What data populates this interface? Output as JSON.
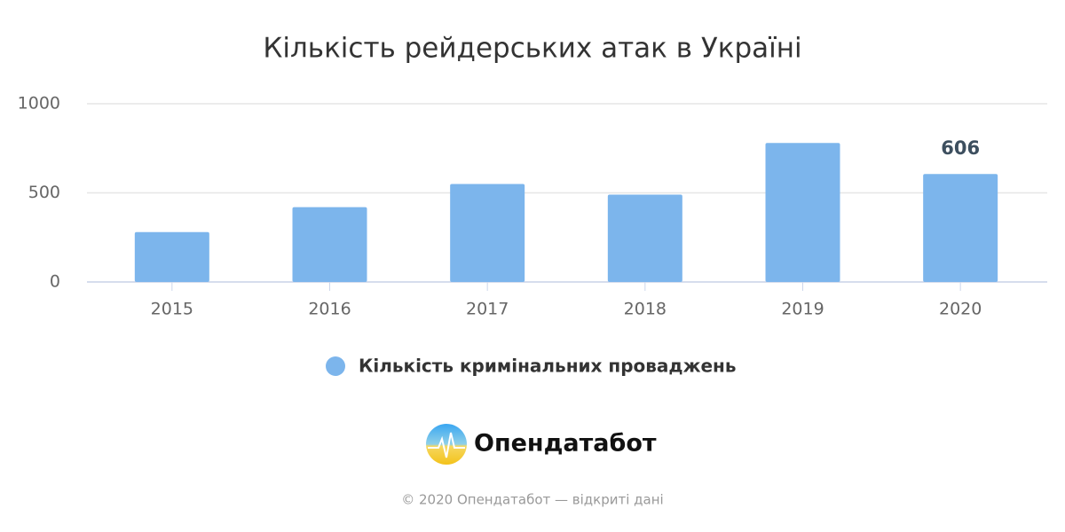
{
  "chart_data": {
    "type": "bar",
    "title": "Кількість рейдерських атак в Україні",
    "categories": [
      "2015",
      "2016",
      "2017",
      "2018",
      "2019",
      "2020"
    ],
    "series": [
      {
        "name": "Кількість кримінальних проваджень",
        "color": "#7cb5ec",
        "values": [
          280,
          420,
          550,
          490,
          780,
          606
        ]
      }
    ],
    "value_labels": [
      null,
      null,
      null,
      null,
      null,
      "606"
    ],
    "ylim": [
      0,
      1000
    ],
    "yticks": [
      0,
      500,
      1000
    ],
    "grid": true
  },
  "logo_text": "Опендатабот",
  "footer": "© 2020 Опендатабот — відкриті дані"
}
